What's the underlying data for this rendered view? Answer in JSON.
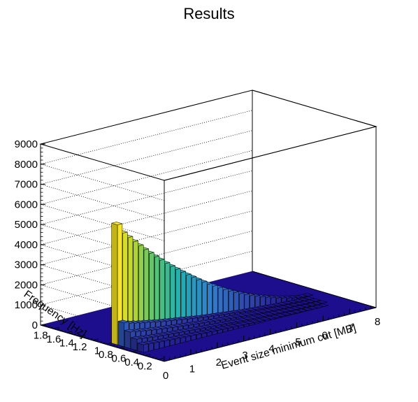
{
  "chart_data": {
    "type": "lego3d",
    "title": "Results",
    "xlabel": "Event size minimum cut [MB]",
    "ylabel": "Frequency [Hz]",
    "zlabel": "",
    "xlim": [
      0,
      8
    ],
    "ylim": [
      0.1,
      2.0
    ],
    "zlim": [
      0,
      9000
    ],
    "x_ticks": [
      "0",
      "1",
      "2",
      "3",
      "4",
      "5",
      "6",
      "7",
      "8"
    ],
    "y_ticks": [
      "0.2",
      "0.4",
      "0.6",
      "0.8",
      "1",
      "1.2",
      "1.4",
      "1.6",
      "1.8"
    ],
    "z_ticks": [
      "0",
      "1000",
      "2000",
      "3000",
      "4000",
      "5000",
      "6000",
      "7000",
      "8000",
      "9000"
    ],
    "grid": true,
    "colormap": "viridis-like",
    "low_color": "#1c0e8c",
    "high_color": "#f9e61e",
    "series": [
      {
        "name": "",
        "y": 0.9,
        "values": [
          0,
          5960,
          5480,
          5190,
          4910,
          4640,
          4380,
          4130,
          3890,
          3660,
          3430,
          3210,
          3000,
          2790,
          2590,
          2400,
          2210,
          2030,
          1860,
          1700,
          1540,
          1390,
          1250,
          1110,
          990,
          870,
          760,
          660,
          560,
          470,
          380,
          300,
          230,
          160,
          100,
          50,
          20,
          5,
          0,
          0
        ]
      },
      {
        "name": "",
        "y": 0.8,
        "values": [
          0,
          1180,
          1080,
          1020,
          960,
          910,
          860,
          810,
          760,
          720,
          680,
          640,
          600,
          560,
          520,
          480,
          440,
          410,
          380,
          350,
          320,
          290,
          260,
          230,
          200,
          180,
          160,
          140,
          120,
          100,
          80,
          60,
          45,
          30,
          20,
          10,
          5,
          0,
          0,
          0
        ]
      },
      {
        "name": "",
        "y": 0.7,
        "values": [
          0,
          820,
          760,
          720,
          680,
          640,
          600,
          570,
          540,
          510,
          480,
          450,
          420,
          390,
          360,
          340,
          310,
          290,
          270,
          250,
          230,
          210,
          190,
          170,
          150,
          130,
          115,
          100,
          85,
          70,
          55,
          45,
          35,
          25,
          15,
          8,
          3,
          0,
          0,
          0
        ]
      },
      {
        "name": "",
        "y": 0.6,
        "values": [
          0,
          560,
          520,
          490,
          460,
          430,
          410,
          390,
          370,
          350,
          330,
          310,
          290,
          270,
          250,
          230,
          215,
          200,
          185,
          170,
          155,
          140,
          128,
          115,
          102,
          90,
          80,
          70,
          60,
          50,
          40,
          32,
          24,
          17,
          10,
          5,
          2,
          0,
          0,
          0
        ]
      },
      {
        "name": "",
        "y": 0.5,
        "values": [
          0,
          380,
          350,
          330,
          310,
          295,
          280,
          265,
          250,
          235,
          220,
          205,
          190,
          178,
          166,
          154,
          142,
          130,
          120,
          110,
          100,
          90,
          82,
          74,
          66,
          58,
          50,
          43,
          36,
          30,
          24,
          18,
          13,
          9,
          5,
          2,
          0,
          0,
          0,
          0
        ]
      }
    ]
  }
}
